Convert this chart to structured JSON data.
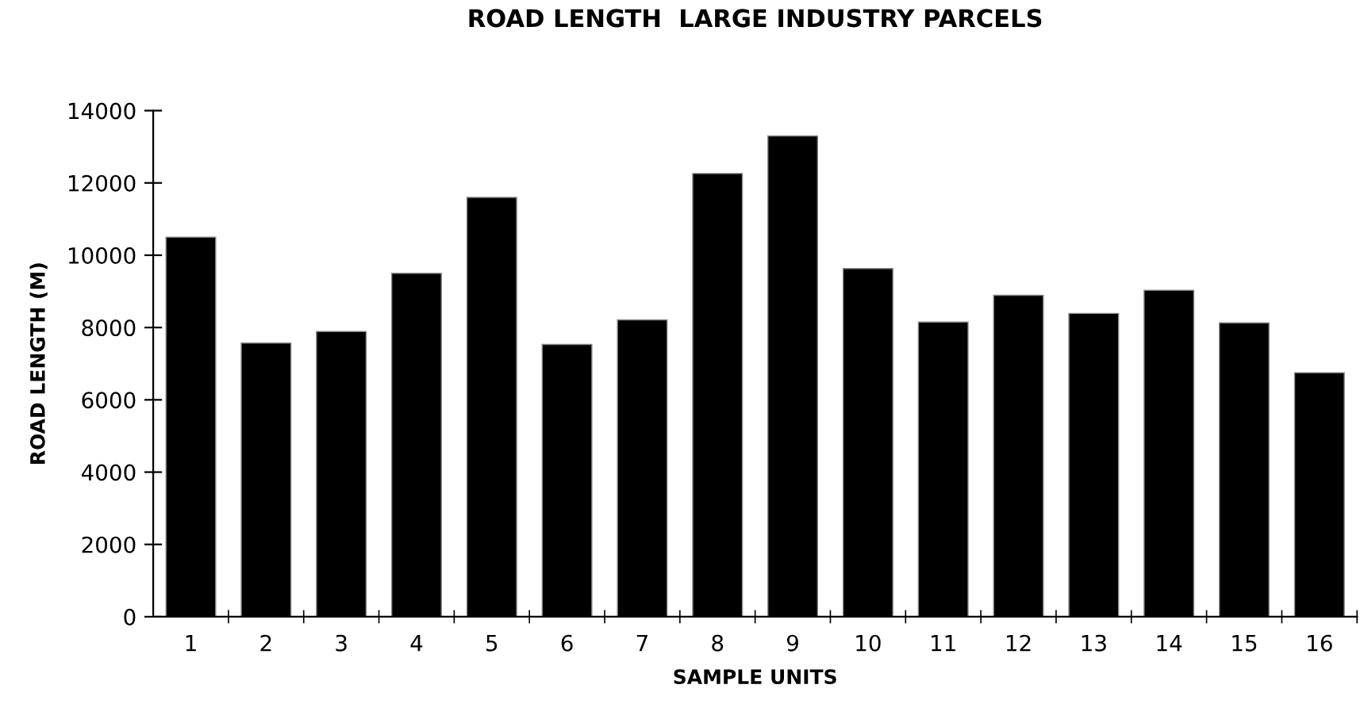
{
  "chart_data": {
    "type": "bar",
    "title": "ROAD LENGTH  LARGE INDUSTRY PARCELS",
    "xlabel": "SAMPLE UNITS",
    "ylabel": "ROAD LENGTH (M)",
    "categories": [
      "1",
      "2",
      "3",
      "4",
      "5",
      "6",
      "7",
      "8",
      "9",
      "10",
      "11",
      "12",
      "13",
      "14",
      "15",
      "16"
    ],
    "values": [
      10500,
      7570,
      7890,
      9500,
      11600,
      7530,
      8210,
      12260,
      13300,
      9630,
      8150,
      8890,
      8390,
      9030,
      8130,
      6750
    ],
    "color": "#000000",
    "ylim": [
      0,
      14000
    ],
    "yticks": [
      0,
      2000,
      4000,
      6000,
      8000,
      10000,
      12000,
      14000
    ],
    "grid": false,
    "legend": false
  }
}
